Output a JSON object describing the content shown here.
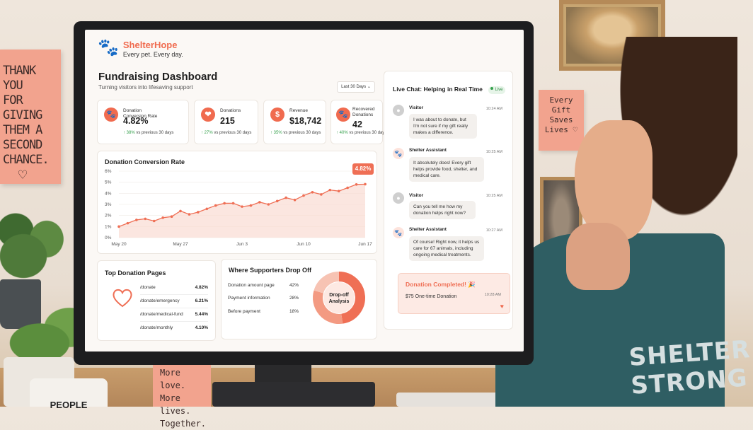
{
  "scene": {
    "wall_note": [
      "THANK",
      "YOU",
      "FOR GIVING",
      "THEM A",
      "SECOND",
      "CHANCE."
    ],
    "side_note": [
      "Every",
      "Gift",
      "Saves",
      "Lives"
    ],
    "desk_note": [
      "More love.",
      "More lives.",
      "Together."
    ],
    "mug_text": "PEOPLE",
    "shirt_text": [
      "SHELTER",
      "STRONG"
    ]
  },
  "brand": {
    "name": "ShelterHope",
    "tagline": "Every pet. Every day."
  },
  "header": {
    "title": "Fundraising Dashboard",
    "subtitle": "Turning visitors into lifesaving support",
    "range": "Last 30 Days"
  },
  "kpis": [
    {
      "label": "Donation Conversion Rate",
      "value": "4.82%",
      "change_arrow": "↑",
      "change": "38%",
      "period": "vs previous 30 days",
      "icon": "paw-icon"
    },
    {
      "label": "Donations",
      "value": "215",
      "change_arrow": "↑",
      "change": "27%",
      "period": "vs previous 30 days",
      "icon": "donation-box-icon"
    },
    {
      "label": "Revenue",
      "value": "$18,742",
      "change_arrow": "↑",
      "change": "35%",
      "period": "vs previous 30 days",
      "icon": "dollar-icon"
    },
    {
      "label": "Recovered Donations",
      "value": "42",
      "change_arrow": "↑",
      "change": "40%",
      "period": "vs previous 30 days",
      "icon": "paw-icon"
    }
  ],
  "chart_data": {
    "type": "area",
    "title": "Donation Conversion Rate",
    "x": [
      "May 20",
      "May 21",
      "May 22",
      "May 23",
      "May 24",
      "May 25",
      "May 26",
      "May 27",
      "May 28",
      "May 29",
      "May 30",
      "May 31",
      "Jun 1",
      "Jun 2",
      "Jun 3",
      "Jun 4",
      "Jun 5",
      "Jun 6",
      "Jun 7",
      "Jun 8",
      "Jun 9",
      "Jun 10",
      "Jun 11",
      "Jun 12",
      "Jun 13",
      "Jun 14",
      "Jun 15",
      "Jun 16",
      "Jun 17"
    ],
    "x_ticks": [
      "May 20",
      "May 27",
      "Jun 3",
      "Jun 10",
      "Jun 17"
    ],
    "y_ticks": [
      "0%",
      "1%",
      "2%",
      "3%",
      "4%",
      "5%",
      "6%"
    ],
    "values": [
      1.0,
      1.3,
      1.6,
      1.7,
      1.5,
      1.8,
      1.9,
      2.4,
      2.1,
      2.3,
      2.6,
      2.9,
      3.1,
      3.1,
      2.8,
      2.9,
      3.2,
      3.0,
      3.3,
      3.6,
      3.4,
      3.8,
      4.1,
      3.9,
      4.3,
      4.2,
      4.5,
      4.8,
      4.82
    ],
    "ylim": [
      0,
      6
    ],
    "current_label": "4.82%",
    "color": "#ef6f55"
  },
  "top_pages": {
    "title": "Top Donation Pages",
    "rows": [
      {
        "path": "/donate",
        "value": "4.82%"
      },
      {
        "path": "/donate/emergency",
        "value": "6.21%"
      },
      {
        "path": "/donate/medical-fund",
        "value": "5.44%"
      },
      {
        "path": "/donate/monthly",
        "value": "4.10%"
      }
    ]
  },
  "dropoff": {
    "title": "Where Supporters Drop Off",
    "rows": [
      {
        "label": "Donation amount page",
        "value": "42%",
        "pct": 42
      },
      {
        "label": "Payment information",
        "value": "28%",
        "pct": 28
      },
      {
        "label": "Before payment",
        "value": "18%",
        "pct": 18
      }
    ],
    "center_label": [
      "Drop-off",
      "Analysis"
    ]
  },
  "chat": {
    "title": "Live Chat: Helping in Real Time",
    "live_label": "Live",
    "messages": [
      {
        "sender": "Visitor",
        "time": "10:24 AM",
        "text": "I was about to donate, but I'm not sure if my gift really makes a difference."
      },
      {
        "sender": "Shelter Assistant",
        "time": "10:25 AM",
        "text": "It absolutely does! Every gift helps provide food, shelter, and medical care."
      },
      {
        "sender": "Visitor",
        "time": "10:25 AM",
        "text": "Can you tell me how my donation helps right now?"
      },
      {
        "sender": "Shelter Assistant",
        "time": "10:27 AM",
        "text": "Of course! Right now, it helps us care for 67 animals, including ongoing medical treatments."
      }
    ],
    "completed": {
      "title": "Donation Completed! 🎉",
      "amount": "$75 One-time Donation",
      "time": "10:28 AM"
    }
  }
}
